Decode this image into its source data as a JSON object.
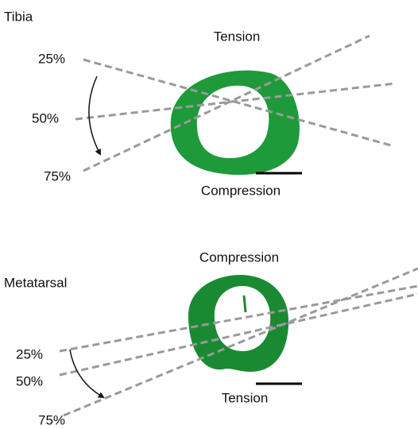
{
  "panels": [
    {
      "label": "Tibia",
      "top_label": "Tension",
      "bottom_label": "Compression",
      "angle_labels": [
        "25%",
        "50%",
        "75%"
      ]
    },
    {
      "label": "Metatarsal",
      "top_label": "Compression",
      "bottom_label": "Tension",
      "angle_labels": [
        "25%",
        "50%",
        "75%"
      ]
    }
  ]
}
